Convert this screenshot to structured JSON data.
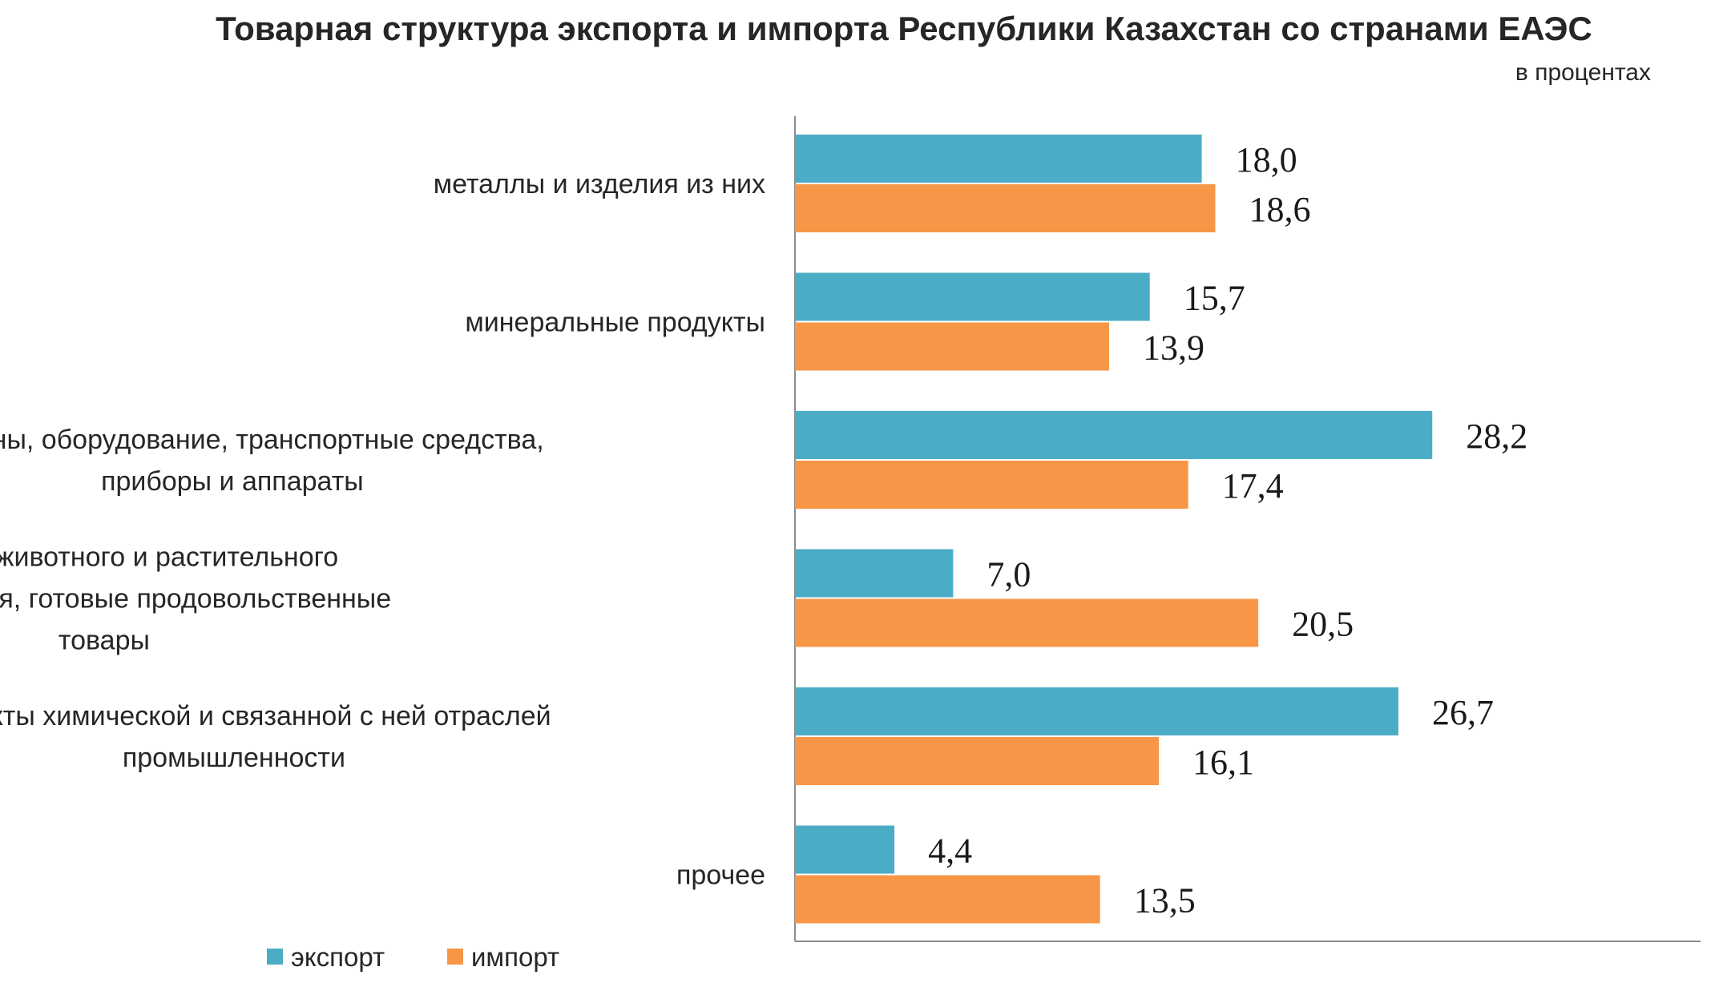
{
  "title": "Товарная структура экспорта и импорта Республики Казахстан со странами ЕАЭС",
  "unit_label": "в процентах",
  "colors": {
    "export": "#4BACC6",
    "import": "#F79646"
  },
  "chart_data": {
    "type": "bar",
    "orientation": "horizontal",
    "title": "Товарная структура экспорта и импорта Республики Казахстан со странами ЕАЭС",
    "subtitle": "в процентах",
    "categories": [
      [
        "металлы и изделия из них"
      ],
      [
        "минеральные продукты"
      ],
      [
        "машины, оборудование, транспортные средства,",
        "приборы и аппараты"
      ],
      [
        "продукты животного и растительного",
        "происхождения, готовые продовольственные",
        "товары"
      ],
      [
        "продукты химической и связанной с ней отраслей",
        "промышленности"
      ],
      [
        "прочее"
      ]
    ],
    "series": [
      {
        "name": "экспорт",
        "values": [
          18.0,
          15.7,
          28.2,
          7.0,
          26.7,
          4.4
        ],
        "labels": [
          "18,0",
          "15,7",
          "28,2",
          "7,0",
          "26,7",
          "4,4"
        ]
      },
      {
        "name": "импорт",
        "values": [
          18.6,
          13.9,
          17.4,
          20.5,
          16.1,
          13.5
        ],
        "labels": [
          "18,6",
          "13,9",
          "17,4",
          "20,5",
          "16,1",
          "13,5"
        ]
      }
    ],
    "xlim": [
      0,
      40
    ],
    "grid": false,
    "legend_position": "bottom-left"
  }
}
